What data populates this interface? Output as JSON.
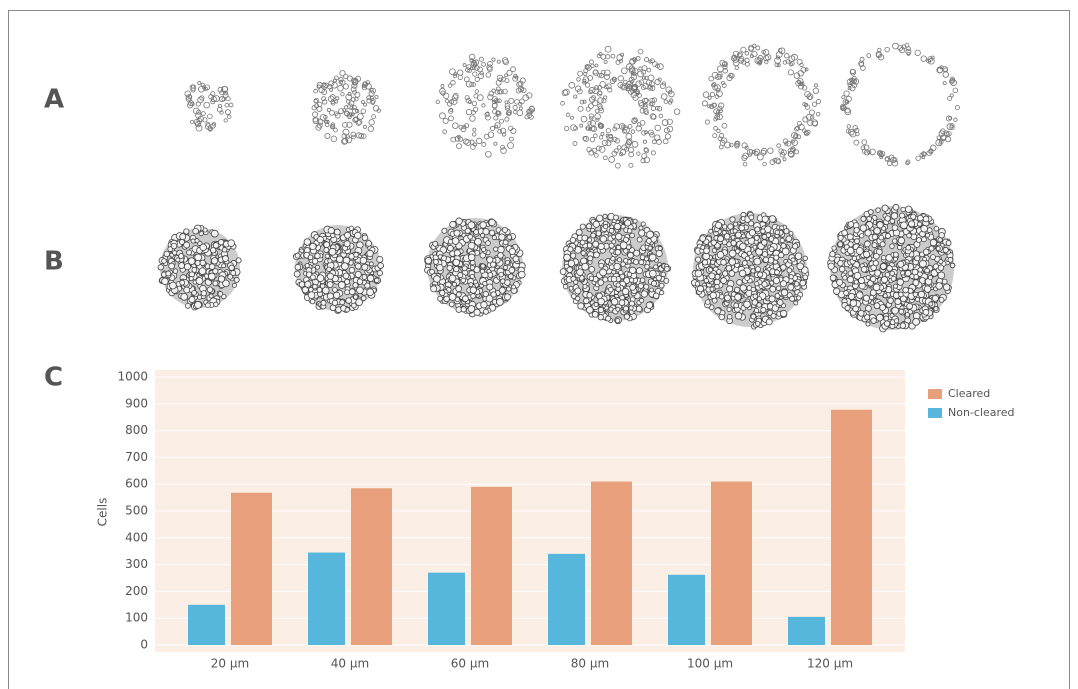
{
  "panel_labels": [
    "A",
    "B",
    "C"
  ],
  "chart_data": {
    "type": "bar",
    "y_label": "Cells",
    "categories": [
      "20 µm",
      "40 µm",
      "60 µm",
      "80 µm",
      "100 µm",
      "120 µm"
    ],
    "series": [
      {
        "name": "Non-cleared",
        "color": "#56b6dc",
        "values": [
          150,
          345,
          270,
          340,
          262,
          105
        ]
      },
      {
        "name": "Cleared",
        "color": "#e8a07c",
        "values": [
          568,
          585,
          590,
          610,
          610,
          878
        ]
      }
    ],
    "ylim": [
      0,
      1000
    ],
    "yticks": [
      0,
      100,
      200,
      300,
      400,
      500,
      600,
      700,
      800,
      900,
      1000
    ],
    "grid": true,
    "legend_order": [
      1,
      0
    ]
  }
}
